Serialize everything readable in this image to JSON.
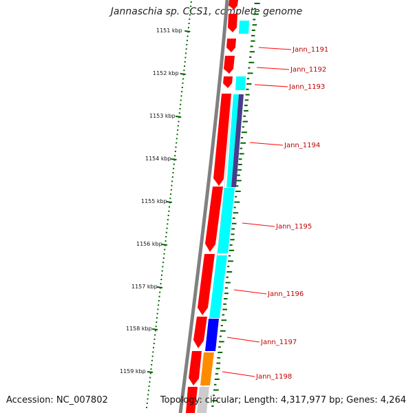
{
  "title": "Jannaschia sp. CCS1, complete genome",
  "footer": {
    "accession": "Accession: NC_007802",
    "topology": "Topology: circular; Length: 4,317,977 bp; Genes: 4,264"
  },
  "ruler_labels": [
    "1151 kbp",
    "1152 kbp",
    "1153 kbp",
    "1154 kbp",
    "1155 kbp",
    "1156 kbp",
    "1157 kbp",
    "1158 kbp",
    "1159 kbp"
  ],
  "gene_labels": [
    "Jann_1191",
    "Jann_1192",
    "Jann_1193",
    "Jann_1194",
    "Jann_1195",
    "Jann_1196",
    "Jann_1197",
    "Jann_1198"
  ],
  "colors": {
    "cds": "#ff0000",
    "backbone": "#808080",
    "ticks": "#006400",
    "label_text": "#c00000",
    "cyan": "#00ffff",
    "indigo": "#483d8b",
    "blue": "#0000ff",
    "orange": "#ff8c00",
    "light_gray": "#cccccc"
  }
}
